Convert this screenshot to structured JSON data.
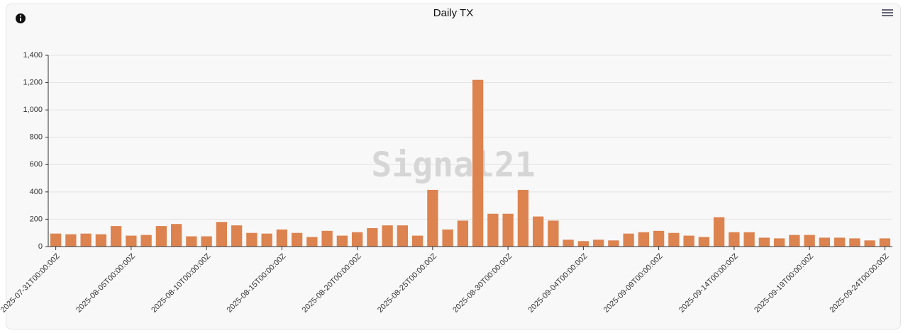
{
  "chart_data": {
    "type": "bar",
    "title": "Daily TX",
    "watermark": "Signal21",
    "categories": [
      "2025-07-31T00:00:00Z",
      null,
      null,
      null,
      null,
      "2025-08-05T00:00:00Z",
      null,
      null,
      null,
      null,
      "2025-08-10T00:00:00Z",
      null,
      null,
      null,
      null,
      "2025-08-15T00:00:00Z",
      null,
      null,
      null,
      null,
      "2025-08-20T00:00:00Z",
      null,
      null,
      null,
      null,
      "2025-08-25T00:00:00Z",
      null,
      null,
      null,
      null,
      "2025-08-30T00:00:00Z",
      null,
      null,
      null,
      null,
      "2025-09-04T00:00:00Z",
      null,
      null,
      null,
      null,
      "2025-09-09T00:00:00Z",
      null,
      null,
      null,
      null,
      "2025-09-14T00:00:00Z",
      null,
      null,
      null,
      null,
      "2025-09-19T00:00:00Z",
      null,
      null,
      null,
      null,
      "2025-09-24T00:00:00Z"
    ],
    "values": [
      95,
      90,
      95,
      90,
      150,
      80,
      85,
      150,
      165,
      75,
      75,
      180,
      155,
      100,
      95,
      125,
      100,
      70,
      115,
      80,
      105,
      135,
      155,
      155,
      80,
      415,
      125,
      190,
      1220,
      240,
      240,
      415,
      220,
      190,
      50,
      40,
      50,
      45,
      95,
      105,
      115,
      100,
      80,
      70,
      215,
      105,
      105,
      65,
      60,
      85,
      85,
      65,
      65,
      60,
      45,
      60
    ],
    "color": "#dd834f",
    "ylim": [
      0,
      1400
    ],
    "yticks": [
      0,
      200,
      400,
      600,
      800,
      {
        "value": 1000,
        "label": "1,000"
      },
      {
        "value": 1200,
        "label": "1,200"
      },
      {
        "value": 1400,
        "label": "1,400"
      }
    ],
    "grid": true
  }
}
